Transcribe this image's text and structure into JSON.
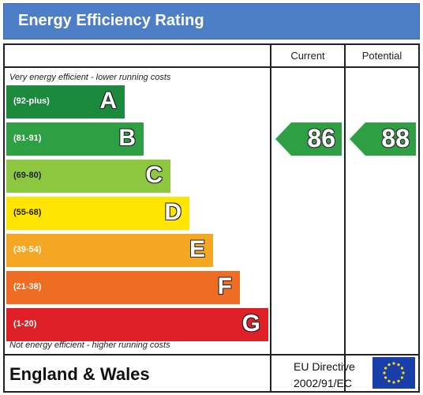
{
  "header": {
    "title": "Energy Efficiency Rating"
  },
  "columns": {
    "current": "Current",
    "potential": "Potential"
  },
  "notes": {
    "top": "Very energy efficient - lower running costs",
    "bottom": "Not energy efficient - higher running costs"
  },
  "footer": {
    "region": "England & Wales",
    "directive_line1": "EU Directive",
    "directive_line2": "2002/91/EC"
  },
  "colors": {
    "header": "#4d7fc6",
    "A": "#1b8a3d",
    "B": "#2ea043",
    "C": "#8dc63f",
    "D": "#ffe500",
    "E": "#f5a623",
    "F": "#ef6c23",
    "G": "#e02027",
    "eu_flag_blue": "#1a3fa8",
    "eu_flag_star": "#ffdd00"
  },
  "chart_data": {
    "type": "bar",
    "title": "Energy Efficiency Rating",
    "bands": [
      {
        "letter": "A",
        "range": "(92-plus)",
        "color": "#1b8a3d"
      },
      {
        "letter": "B",
        "range": "(81-91)",
        "color": "#2ea043"
      },
      {
        "letter": "C",
        "range": "(69-80)",
        "color": "#8dc63f"
      },
      {
        "letter": "D",
        "range": "(55-68)",
        "color": "#ffe500"
      },
      {
        "letter": "E",
        "range": "(39-54)",
        "color": "#f5a623"
      },
      {
        "letter": "F",
        "range": "(21-38)",
        "color": "#ef6c23"
      },
      {
        "letter": "G",
        "range": "(1-20)",
        "color": "#e02027"
      }
    ],
    "current": {
      "value": 86,
      "band": "B"
    },
    "potential": {
      "value": 88,
      "band": "B"
    }
  }
}
